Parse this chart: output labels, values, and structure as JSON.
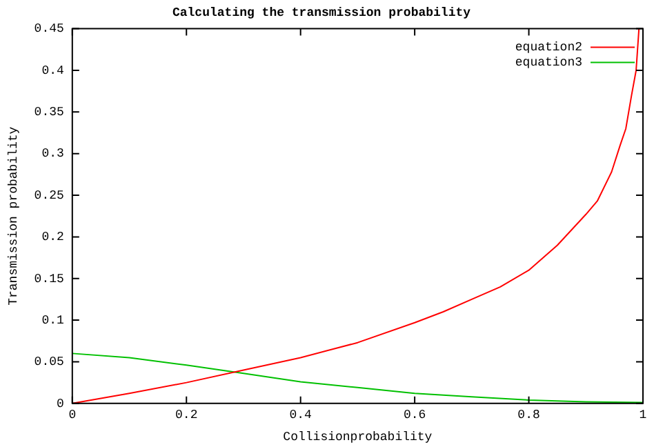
{
  "chart_data": {
    "type": "line",
    "title": "Calculating the transmission probability",
    "xlabel": "Collisionprobability",
    "ylabel": "Transmission probability",
    "xlim": [
      0,
      1
    ],
    "xticks": [
      0,
      0.2,
      0.4,
      0.6,
      0.8,
      1
    ],
    "ylim": [
      0,
      0.45
    ],
    "yticks": [
      0,
      0.05,
      0.1,
      0.15,
      0.2,
      0.25,
      0.3,
      0.35,
      0.4,
      0.45
    ],
    "grid": false,
    "legend": "top right",
    "marker": "none",
    "line_style": "solid",
    "series": [
      {
        "name": "equation2",
        "color": "#ff0000",
        "x": [
          0,
          0.1,
          0.2,
          0.3,
          0.4,
          0.5,
          0.6,
          0.65,
          0.7,
          0.75,
          0.8,
          0.85,
          0.9,
          0.92,
          0.945,
          0.96,
          0.97,
          0.98,
          0.988,
          0.993
        ],
        "values": [
          0,
          0.012,
          0.025,
          0.04,
          0.055,
          0.073,
          0.097,
          0.11,
          0.125,
          0.14,
          0.16,
          0.19,
          0.227,
          0.243,
          0.278,
          0.31,
          0.33,
          0.37,
          0.4,
          0.45
        ]
      },
      {
        "name": "equation3",
        "color": "#00c000",
        "x": [
          0,
          0.1,
          0.2,
          0.3,
          0.4,
          0.5,
          0.6,
          0.7,
          0.8,
          0.9,
          1
        ],
        "values": [
          0.06,
          0.055,
          0.046,
          0.036,
          0.026,
          0.019,
          0.012,
          0.008,
          0.004,
          0.002,
          0.001
        ]
      }
    ]
  }
}
